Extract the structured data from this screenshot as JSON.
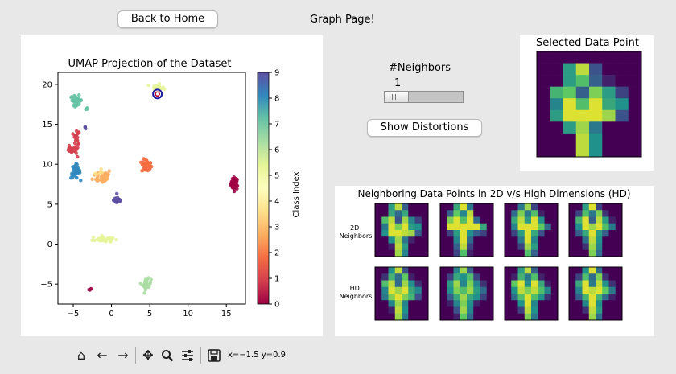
{
  "header": {
    "back_label": "Back to Home",
    "page_title": "Graph Page!"
  },
  "umap": {
    "title": "UMAP Projection of the Dataset",
    "x_ticks": [
      "−5",
      "0",
      "5",
      "10",
      "15"
    ],
    "y_ticks": [
      "20",
      "15",
      "10",
      "5",
      "0",
      "−5"
    ],
    "colorbar_label": "Class Index",
    "colorbar_ticks": [
      "9",
      "8",
      "7",
      "6",
      "5",
      "4",
      "3",
      "2",
      "1",
      "0"
    ],
    "colormap": [
      "#9e0142",
      "#d53e4f",
      "#f46d43",
      "#fdae61",
      "#fee08b",
      "#ffffbf",
      "#e6f598",
      "#abdda4",
      "#66c2a5",
      "#3288bd",
      "#5e4fa2"
    ],
    "selected_marker": "ring-marker",
    "selected_point": {
      "x": 6.0,
      "y": 18.8
    }
  },
  "chart_data": {
    "type": "scatter",
    "title": "UMAP Projection of the Dataset",
    "xlabel": "",
    "ylabel": "",
    "xlim": [
      -7,
      17.5
    ],
    "ylim": [
      -7.5,
      21.5
    ],
    "color_label": "Class Index",
    "clusters": [
      {
        "class": 0,
        "center": [
          16.1,
          7.6
        ],
        "sx": 0.45,
        "sy": 0.7,
        "n": 40
      },
      {
        "class": 0,
        "center": [
          -2.8,
          -5.7
        ],
        "sx": 0.15,
        "sy": 0.15,
        "n": 3
      },
      {
        "class": 1,
        "center": [
          -4.6,
          12.7
        ],
        "sx": 0.4,
        "sy": 1.6,
        "n": 25
      },
      {
        "class": 1,
        "center": [
          -5.4,
          11.8
        ],
        "sx": 0.4,
        "sy": 0.4,
        "n": 14
      },
      {
        "class": 2,
        "center": [
          4.6,
          9.8
        ],
        "sx": 0.6,
        "sy": 0.75,
        "n": 42
      },
      {
        "class": 3,
        "center": [
          -1.2,
          8.5
        ],
        "sx": 1.1,
        "sy": 0.8,
        "n": 42
      },
      {
        "class": 4,
        "center": [
          -2.0,
          9.0
        ],
        "sx": 0.8,
        "sy": 0.5,
        "n": 6
      },
      {
        "class": 5,
        "center": [
          6.0,
          19.7
        ],
        "sx": 0.6,
        "sy": 0.3,
        "n": 26
      },
      {
        "class": 5,
        "center": [
          -1.2,
          0.6
        ],
        "sx": 1.2,
        "sy": 0.35,
        "n": 30
      },
      {
        "class": 6,
        "center": [
          4.6,
          -5.0
        ],
        "sx": 0.5,
        "sy": 0.6,
        "n": 35
      },
      {
        "class": 7,
        "center": [
          -4.6,
          18.0
        ],
        "sx": 0.7,
        "sy": 0.55,
        "n": 38
      },
      {
        "class": 7,
        "center": [
          -3.2,
          16.9
        ],
        "sx": 0.2,
        "sy": 0.2,
        "n": 4
      },
      {
        "class": 8,
        "center": [
          -4.7,
          9.1
        ],
        "sx": 0.55,
        "sy": 0.8,
        "n": 38
      },
      {
        "class": 9,
        "center": [
          0.8,
          5.5
        ],
        "sx": 0.45,
        "sy": 0.45,
        "n": 30
      },
      {
        "class": 9,
        "center": [
          -3.4,
          14.6
        ],
        "sx": 0.15,
        "sy": 0.2,
        "n": 3
      }
    ]
  },
  "controls": {
    "neighbors_label": "#Neighbors",
    "neighbors_value": "1",
    "slider_value": 1,
    "distortions_label": "Show Distortions"
  },
  "selected": {
    "title": "Selected Data Point",
    "image": [
      [
        0,
        0,
        0,
        0,
        0,
        0,
        0,
        0
      ],
      [
        0,
        0,
        0.55,
        0.9,
        0.25,
        0,
        0,
        0
      ],
      [
        0,
        0,
        0.55,
        0.7,
        0.3,
        0.1,
        0,
        0
      ],
      [
        0,
        0.65,
        0.75,
        0.3,
        0.8,
        0.55,
        0.2,
        0
      ],
      [
        0,
        0.45,
        0.95,
        0.7,
        0.95,
        0.6,
        0.5,
        0
      ],
      [
        0,
        0.55,
        0.95,
        0.95,
        0.95,
        0.85,
        0.25,
        0
      ],
      [
        0,
        0,
        0.55,
        0.85,
        0.4,
        0,
        0,
        0
      ],
      [
        0,
        0,
        0,
        0.9,
        0.5,
        0,
        0,
        0
      ],
      [
        0,
        0,
        0,
        0.9,
        0.5,
        0,
        0,
        0
      ]
    ]
  },
  "neighbors": {
    "title": "Neighboring Data Points in 2D v/s High Dimensions (HD)",
    "row_2d_label_1": "2D",
    "row_2d_label_2": "Neighbors",
    "row_hd_label_1": "HD",
    "row_hd_label_2": "Neighbors",
    "images_2d": [
      [
        [
          0,
          0,
          0.55,
          0.9,
          0.3,
          0,
          0,
          0
        ],
        [
          0,
          0,
          0.6,
          0.35,
          0.6,
          0,
          0,
          0
        ],
        [
          0,
          0.7,
          0.9,
          0.25,
          0.85,
          0.45,
          0.2,
          0
        ],
        [
          0,
          0.4,
          0.95,
          0.8,
          0.95,
          0.55,
          0.5,
          0
        ],
        [
          0,
          0.5,
          0.95,
          0.95,
          0.9,
          0.85,
          0.3,
          0
        ],
        [
          0,
          0,
          0.5,
          0.85,
          0.4,
          0.1,
          0,
          0
        ],
        [
          0,
          0,
          0.1,
          0.9,
          0.55,
          0,
          0,
          0
        ],
        [
          0,
          0,
          0,
          0.85,
          0.45,
          0,
          0,
          0
        ]
      ],
      [
        [
          0,
          0,
          0.6,
          0.95,
          0.4,
          0,
          0,
          0
        ],
        [
          0,
          0.3,
          0.75,
          0.45,
          0.9,
          0,
          0,
          0
        ],
        [
          0,
          0.8,
          0.95,
          0.7,
          0.95,
          0.35,
          0,
          0
        ],
        [
          0,
          0.95,
          0.95,
          0.95,
          0.95,
          0.95,
          0.6,
          0
        ],
        [
          0,
          0.2,
          0.55,
          0.95,
          0.5,
          0.3,
          0.2,
          0
        ],
        [
          0,
          0,
          0.45,
          0.95,
          0.35,
          0,
          0,
          0
        ],
        [
          0,
          0,
          0.3,
          0.9,
          0.2,
          0,
          0,
          0
        ],
        [
          0,
          0,
          0.2,
          0.7,
          0.1,
          0,
          0,
          0
        ]
      ],
      [
        [
          0,
          0,
          0.4,
          0.85,
          0.2,
          0,
          0,
          0
        ],
        [
          0,
          0.35,
          0.8,
          0.4,
          0.7,
          0.1,
          0,
          0
        ],
        [
          0,
          0.6,
          0.9,
          0.55,
          0.95,
          0.5,
          0,
          0
        ],
        [
          0,
          0.45,
          0.95,
          0.95,
          0.95,
          0.75,
          0.35,
          0
        ],
        [
          0,
          0.2,
          0.55,
          0.95,
          0.6,
          0.25,
          0,
          0
        ],
        [
          0,
          0,
          0.4,
          0.95,
          0.45,
          0,
          0,
          0
        ],
        [
          0,
          0,
          0.2,
          0.85,
          0.55,
          0,
          0,
          0
        ],
        [
          0,
          0,
          0,
          0.7,
          0.3,
          0,
          0,
          0
        ]
      ],
      [
        [
          0,
          0,
          0.55,
          0.95,
          0.2,
          0,
          0,
          0
        ],
        [
          0,
          0.2,
          0.7,
          0.4,
          0.8,
          0.15,
          0,
          0
        ],
        [
          0,
          0.65,
          0.95,
          0.3,
          0.9,
          0.55,
          0.1,
          0
        ],
        [
          0,
          0.5,
          0.95,
          0.85,
          0.95,
          0.7,
          0.4,
          0
        ],
        [
          0,
          0.3,
          0.6,
          0.95,
          0.55,
          0.3,
          0,
          0
        ],
        [
          0,
          0,
          0.35,
          0.9,
          0.5,
          0,
          0,
          0
        ],
        [
          0,
          0,
          0.15,
          0.85,
          0.45,
          0,
          0,
          0
        ],
        [
          0,
          0,
          0,
          0.8,
          0.35,
          0,
          0,
          0
        ]
      ]
    ],
    "images_hd": [
      [
        [
          0,
          0,
          0.5,
          0.9,
          0.25,
          0,
          0,
          0
        ],
        [
          0,
          0.15,
          0.65,
          0.35,
          0.75,
          0.1,
          0,
          0
        ],
        [
          0,
          0.7,
          0.9,
          0.35,
          0.85,
          0.5,
          0.15,
          0
        ],
        [
          0,
          0.45,
          0.95,
          0.85,
          0.95,
          0.6,
          0.45,
          0
        ],
        [
          0,
          0.4,
          0.8,
          0.95,
          0.8,
          0.65,
          0.25,
          0
        ],
        [
          0,
          0,
          0.45,
          0.85,
          0.45,
          0,
          0,
          0
        ],
        [
          0,
          0,
          0.1,
          0.9,
          0.5,
          0,
          0,
          0
        ],
        [
          0,
          0,
          0,
          0.85,
          0.4,
          0,
          0,
          0
        ]
      ],
      [
        [
          0,
          0,
          0.45,
          0.85,
          0.3,
          0,
          0,
          0
        ],
        [
          0,
          0.2,
          0.6,
          0.5,
          0.7,
          0.2,
          0,
          0
        ],
        [
          0,
          0.55,
          0.85,
          0.45,
          0.8,
          0.45,
          0.15,
          0
        ],
        [
          0,
          0.5,
          0.8,
          0.7,
          0.85,
          0.55,
          0.35,
          0
        ],
        [
          0,
          0.3,
          0.6,
          0.85,
          0.6,
          0.5,
          0.2,
          0
        ],
        [
          0,
          0.1,
          0.45,
          0.8,
          0.5,
          0.1,
          0,
          0
        ],
        [
          0,
          0,
          0.25,
          0.85,
          0.45,
          0,
          0,
          0
        ],
        [
          0,
          0,
          0.1,
          0.75,
          0.35,
          0,
          0,
          0
        ]
      ],
      [
        [
          0,
          0,
          0.55,
          0.9,
          0.3,
          0,
          0,
          0
        ],
        [
          0,
          0.1,
          0.65,
          0.4,
          0.7,
          0.1,
          0,
          0
        ],
        [
          0,
          0.75,
          0.95,
          0.5,
          0.95,
          0.6,
          0.1,
          0
        ],
        [
          0,
          0.5,
          0.9,
          0.8,
          0.9,
          0.7,
          0.45,
          0
        ],
        [
          0,
          0.35,
          0.7,
          0.95,
          0.7,
          0.5,
          0.15,
          0
        ],
        [
          0,
          0,
          0.5,
          0.95,
          0.45,
          0,
          0,
          0
        ],
        [
          0,
          0,
          0.2,
          0.9,
          0.5,
          0,
          0,
          0
        ],
        [
          0,
          0,
          0,
          0.8,
          0.4,
          0,
          0,
          0
        ]
      ],
      [
        [
          0,
          0,
          0.5,
          0.95,
          0.35,
          0,
          0,
          0
        ],
        [
          0,
          0.2,
          0.7,
          0.35,
          0.8,
          0.15,
          0,
          0
        ],
        [
          0,
          0.6,
          0.95,
          0.4,
          0.9,
          0.5,
          0.15,
          0
        ],
        [
          0,
          0.45,
          0.95,
          0.9,
          0.95,
          0.75,
          0.4,
          0
        ],
        [
          0,
          0.3,
          0.65,
          0.95,
          0.65,
          0.35,
          0.1,
          0
        ],
        [
          0,
          0,
          0.45,
          0.95,
          0.5,
          0,
          0,
          0
        ],
        [
          0,
          0,
          0.15,
          0.9,
          0.55,
          0,
          0,
          0
        ],
        [
          0,
          0,
          0,
          0.85,
          0.35,
          0,
          0,
          0
        ]
      ]
    ]
  },
  "toolbar": {
    "home_icon": "home-icon",
    "back_icon": "arrow-left-icon",
    "forward_icon": "arrow-right-icon",
    "pan_icon": "move-icon",
    "zoom_icon": "magnifier-icon",
    "configure_icon": "sliders-icon",
    "save_icon": "save-icon",
    "coordinates": "x=−1.5 y=0.9"
  }
}
